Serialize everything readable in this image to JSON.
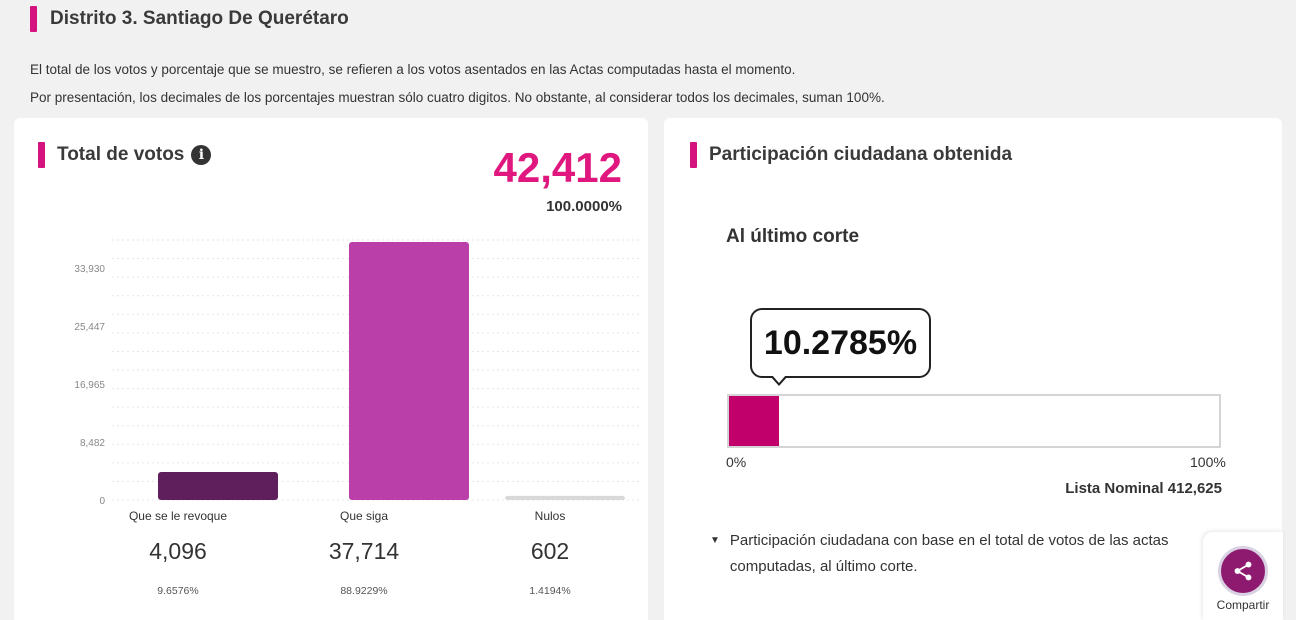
{
  "page": {
    "title": "Distrito 3. Santiago De Querétaro",
    "info_line_1": "El total de los votos y porcentaje que se muestro, se refieren a los votos asentados en las Actas computadas hasta el momento.",
    "info_line_2": "Por presentación, los decimales de los porcentajes muestran sólo cuatro digitos. No obstante, al considerar todos los decimales, suman 100%."
  },
  "total_card": {
    "heading": "Total de votos",
    "info_icon": "info-icon",
    "total": "42,412",
    "total_pct": "100.0000%",
    "categories": [
      {
        "label": "Que se le revoque",
        "value": "4,096",
        "pct": "9.6576%"
      },
      {
        "label": "Que siga",
        "value": "37,714",
        "pct": "88.9229%"
      },
      {
        "label": "Nulos",
        "value": "602",
        "pct": "1.4194%"
      }
    ]
  },
  "chart_data": {
    "type": "bar",
    "categories": [
      "Que se le revoque",
      "Que siga",
      "Nulos"
    ],
    "values": [
      4096,
      37714,
      602
    ],
    "colors": [
      "#5e1f5c",
      "#bb3fa8",
      "#d9d9d9"
    ],
    "ylim": [
      0,
      38000
    ],
    "yticks": [
      0,
      8482,
      16965,
      25447,
      33930
    ],
    "ytick_labels": [
      "0",
      "8,482",
      "16,965",
      "25,447",
      "33,930"
    ],
    "grid": true,
    "xlabel": "",
    "ylabel": ""
  },
  "participation_card": {
    "heading": "Participación ciudadana obtenida",
    "subheading": "Al último corte",
    "percentage_label": "10.2785%",
    "percentage": 10.2785,
    "fill_color": "#c2006b",
    "scale_min": "0%",
    "scale_max": "100%",
    "lista_nominal": "Lista Nominal 412,625",
    "note": "Participación ciudadana con base en el total de votos de las actas computadas, al último corte."
  },
  "share": {
    "label": "Compartir",
    "icon": "share-icon"
  },
  "colors": {
    "accent": "#d5137f",
    "total_number": "#e0177f",
    "share_button": "#8e1a6f"
  }
}
